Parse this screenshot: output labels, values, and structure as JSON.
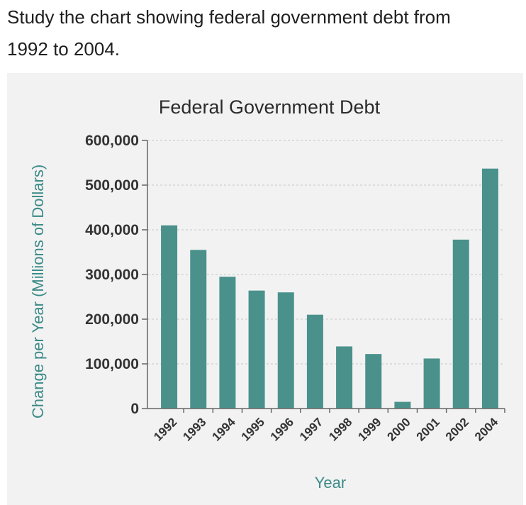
{
  "question": {
    "line1": "Study the chart showing federal government debt from",
    "line2": "1992 to 2004."
  },
  "colors": {
    "bar": "#4a918c",
    "axis_label": "#3c8b88",
    "grid": "#c8c8c8",
    "panel": "#f2f2f2"
  },
  "chart_data": {
    "type": "bar",
    "title": "Federal Government Debt",
    "xlabel": "Year",
    "ylabel": "Change per Year (Millions of Dollars)",
    "categories": [
      "1992",
      "1993",
      "1994",
      "1995",
      "1996",
      "1997",
      "1998",
      "1999",
      "2000",
      "2001",
      "2002",
      "2004"
    ],
    "values": [
      410000,
      355000,
      295000,
      264000,
      260000,
      210000,
      139000,
      122000,
      15000,
      112000,
      378000,
      537000
    ],
    "ylim": [
      0,
      600000
    ],
    "yticks": [
      0,
      100000,
      200000,
      300000,
      400000,
      500000,
      600000
    ],
    "ytick_labels": [
      "0",
      "100,000",
      "200,000",
      "300,000",
      "400,000",
      "500,000",
      "600,000"
    ],
    "grid": true
  }
}
